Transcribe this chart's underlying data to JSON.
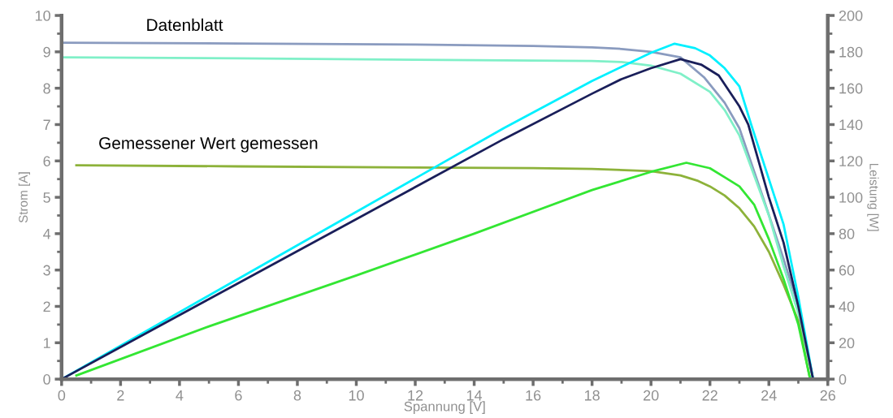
{
  "chart_data": {
    "type": "line",
    "xlabel": "Spannung [V]",
    "ylabel": "Strom [A]",
    "y2label": "Leistung [W]",
    "annotations": [
      "Datenblatt",
      "Gemessener Wert gemessen"
    ],
    "xlim": [
      0,
      26
    ],
    "xticks": [
      0,
      2,
      4,
      6,
      8,
      10,
      12,
      14,
      16,
      18,
      20,
      22,
      24,
      26
    ],
    "ylim": [
      0,
      10
    ],
    "yticks": [
      0,
      1,
      2,
      3,
      4,
      5,
      6,
      7,
      8,
      9,
      10
    ],
    "y2lim": [
      0,
      200
    ],
    "y2ticks": [
      0,
      20,
      40,
      60,
      80,
      100,
      120,
      140,
      160,
      180,
      200
    ],
    "grid": false,
    "marker": "none",
    "line_style": "solid",
    "series": [
      {
        "color": "#8a9bbf",
        "x": [
          0,
          6,
          12,
          16,
          18,
          19,
          20,
          21,
          21.8,
          22.5,
          23,
          23.8,
          24.5,
          25,
          25.5
        ],
        "values": [
          9.25,
          9.23,
          9.2,
          9.16,
          9.12,
          9.08,
          9.0,
          8.85,
          8.3,
          7.6,
          6.9,
          5.0,
          3.3,
          2.0,
          0
        ]
      },
      {
        "color": "#80f0c8",
        "x": [
          0,
          6,
          12,
          16,
          18,
          19,
          20,
          21,
          22,
          22.5,
          23,
          24,
          24.5,
          25,
          25.5
        ],
        "values": [
          8.85,
          8.82,
          8.78,
          8.76,
          8.75,
          8.72,
          8.62,
          8.4,
          7.9,
          7.4,
          6.7,
          4.5,
          3.1,
          1.8,
          0
        ]
      },
      {
        "color": "#00f0ff",
        "axis": "y2",
        "x": [
          0,
          5,
          10,
          15,
          18,
          20,
          20.8,
          21.5,
          22,
          22.5,
          23,
          23.4,
          24,
          24.5,
          25,
          25.5
        ],
        "values": [
          0,
          46,
          92,
          138,
          164,
          179.5,
          184.5,
          182,
          178,
          171,
          161,
          140,
          110,
          85,
          45,
          0
        ]
      },
      {
        "color": "#1a1f5a",
        "axis": "y2",
        "x": [
          0,
          5,
          10,
          15,
          18,
          19,
          20,
          21,
          21.7,
          22.3,
          23,
          23.3,
          24,
          24.5,
          25,
          25.5
        ],
        "values": [
          0,
          44,
          88,
          132,
          157,
          165,
          171,
          176,
          173,
          167,
          150,
          140,
          100,
          75,
          40,
          0
        ]
      },
      {
        "color": "#8db23a",
        "x": [
          0.5,
          6,
          12,
          16,
          18,
          20,
          21,
          21.6,
          22,
          22.5,
          23,
          23.5,
          24,
          24.5,
          25,
          25.4
        ],
        "values": [
          5.88,
          5.85,
          5.82,
          5.8,
          5.78,
          5.72,
          5.6,
          5.45,
          5.3,
          5.05,
          4.7,
          4.2,
          3.5,
          2.6,
          1.6,
          0
        ]
      },
      {
        "color": "#33e633",
        "axis": "y2",
        "x": [
          0.5,
          5,
          10,
          14,
          18,
          20,
          21.2,
          22,
          22.5,
          23,
          23.5,
          24,
          24.5,
          25,
          25.4
        ],
        "values": [
          2,
          29,
          57,
          80,
          104,
          114,
          119,
          116,
          111,
          106,
          96,
          77,
          55,
          30,
          0
        ]
      }
    ]
  }
}
